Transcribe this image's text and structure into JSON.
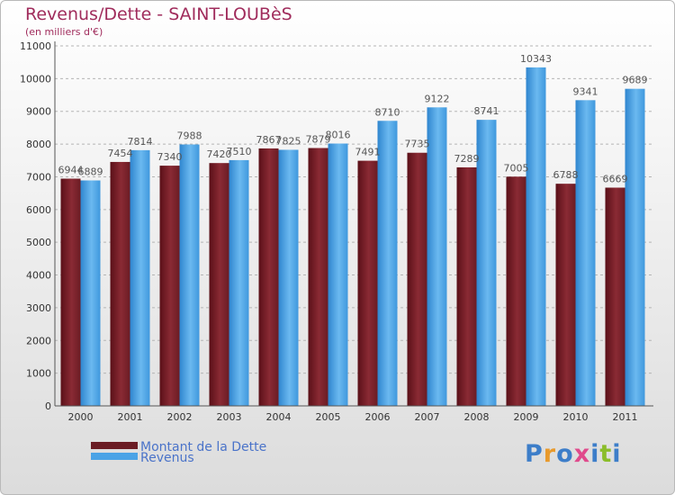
{
  "title": "Revenus/Dette - SAINT-LOUBèS",
  "subtitle": "(en milliers d'€)",
  "brand": {
    "letters": [
      "P",
      "r",
      "o",
      "x",
      "i",
      "t",
      "i"
    ],
    "colors": [
      "#3d7ec9",
      "#e89a2c",
      "#3d7ec9",
      "#e04a8c",
      "#3d7ec9",
      "#8bbd2a",
      "#3d7ec9"
    ]
  },
  "colors": {
    "title": "#a02c5c",
    "dette": "#6b1c24",
    "revenus": "#4aa3e6",
    "grid": "#b5b5b5",
    "legend_text": "#4a73c9"
  },
  "chart_data": {
    "type": "bar",
    "title": "Revenus/Dette - SAINT-LOUBèS",
    "subtitle": "(en milliers d'€)",
    "categories": [
      "2000",
      "2001",
      "2002",
      "2003",
      "2004",
      "2005",
      "2006",
      "2007",
      "2008",
      "2009",
      "2010",
      "2011"
    ],
    "series": [
      {
        "name": "Montant de la Dette",
        "values": [
          6944,
          7454,
          7340,
          7420,
          7867,
          7879,
          7491,
          7735,
          7289,
          7005,
          6788,
          6669
        ]
      },
      {
        "name": "Revenus",
        "values": [
          6889,
          7814,
          7988,
          7510,
          7825,
          8016,
          8710,
          9122,
          8741,
          10343,
          9341,
          9689
        ]
      }
    ],
    "ylim": [
      0,
      11000
    ],
    "yticks": [
      0,
      1000,
      2000,
      3000,
      4000,
      5000,
      6000,
      7000,
      8000,
      9000,
      10000,
      11000
    ],
    "grid": true,
    "legend_position": "bottom-left"
  }
}
